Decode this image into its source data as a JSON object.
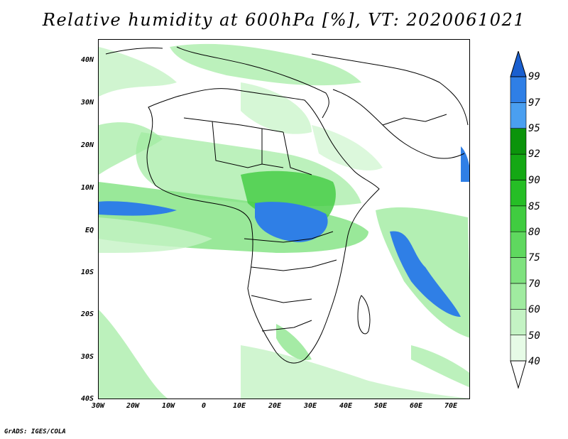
{
  "title": "Relative humidity at 600hPa [%], VT: 2020061021",
  "footer": "GrADS: IGES/COLA",
  "map": {
    "lat_labels": [
      "40N",
      "30N",
      "20N",
      "10N",
      "EQ",
      "10S",
      "20S",
      "30S",
      "40S"
    ],
    "lon_labels": [
      "30W",
      "20W",
      "10W",
      "0",
      "10E",
      "20E",
      "30E",
      "40E",
      "50E",
      "60E",
      "70E"
    ],
    "lat_range": [
      -40,
      45
    ],
    "lon_range": [
      -30,
      75
    ]
  },
  "colorbar": {
    "levels": [
      "40",
      "50",
      "60",
      "70",
      "75",
      "80",
      "85",
      "90",
      "92",
      "95",
      "97",
      "99"
    ],
    "colors": [
      "#e6fbe6",
      "#c4f3c4",
      "#a0eba0",
      "#7fe27f",
      "#5fd85f",
      "#40cc40",
      "#26be26",
      "#14a814",
      "#0b940b",
      "#4a9ff0",
      "#2f7fe6",
      "#1a5fcf"
    ],
    "under_color": "#ffffff",
    "over_color": "#1a5fcf"
  }
}
